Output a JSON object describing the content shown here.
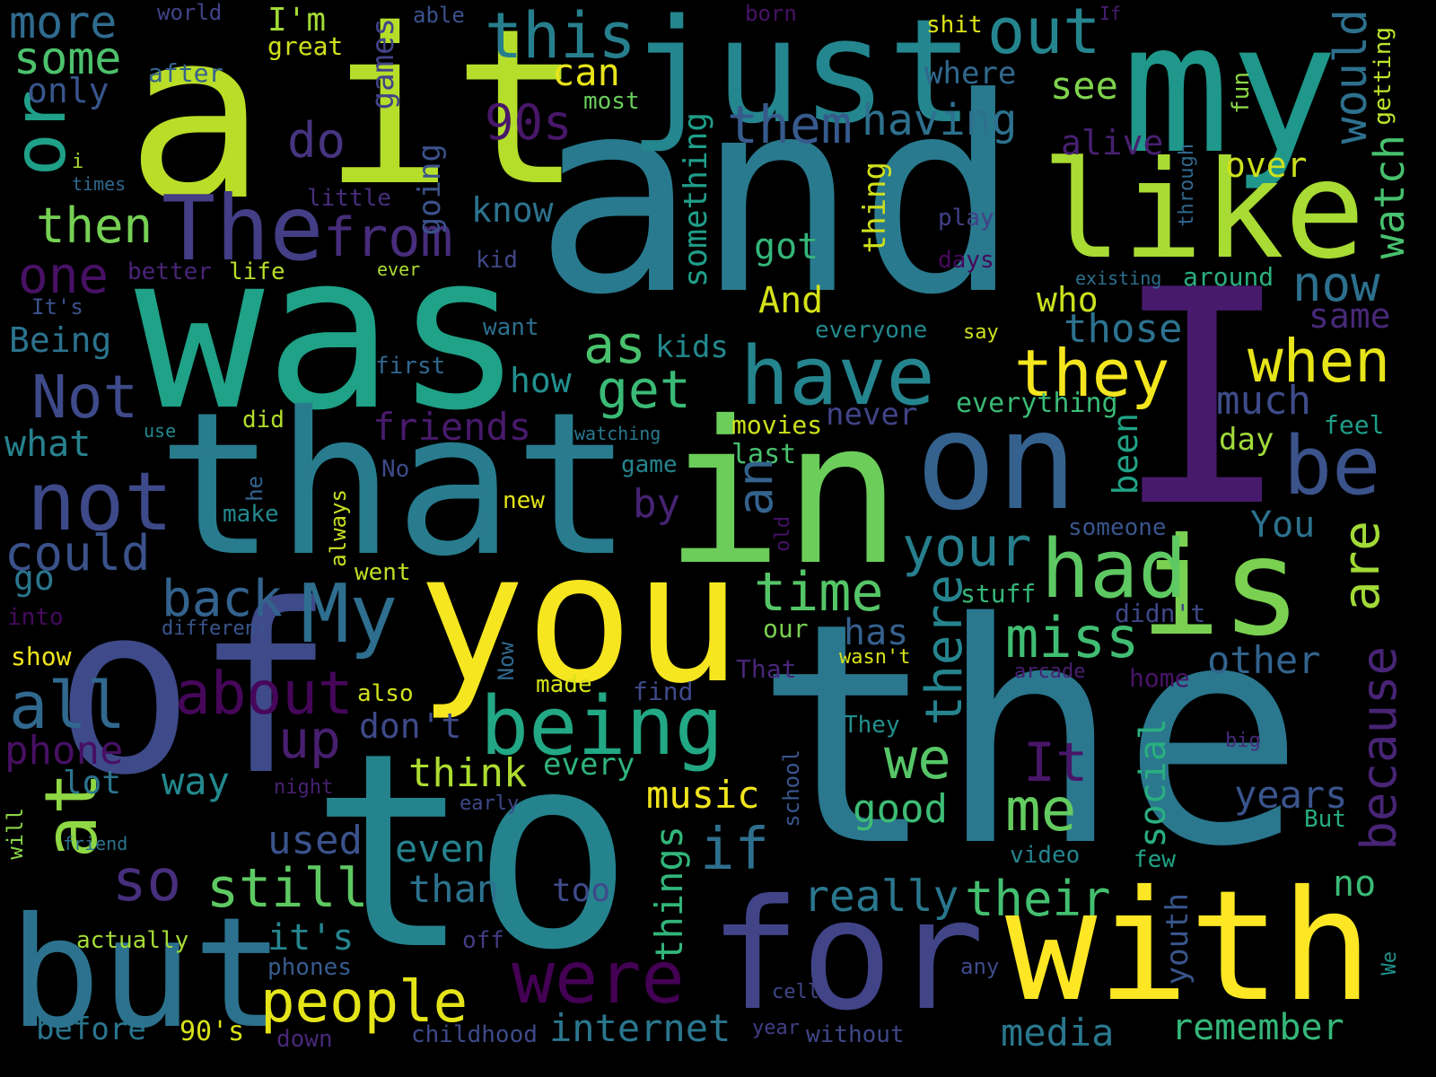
{
  "palette": {
    "background": "#000000",
    "colors": [
      "#440154",
      "#3b528b",
      "#21918c",
      "#5ec962",
      "#fde725"
    ]
  },
  "words": [
    "a",
    "it",
    "and",
    "my",
    "just",
    "like",
    "was",
    "I",
    "that",
    "in",
    "on",
    "the",
    "you",
    "to",
    "of",
    "with",
    "for",
    "but",
    "is",
    "The",
    "out",
    "this",
    "have",
    "had",
    "being",
    "be",
    "not",
    "or",
    "at",
    "My",
    "people",
    "were",
    "they",
    "when",
    "all",
    "about",
    "time",
    "your",
    "miss",
    "me",
    "we",
    "because",
    "there",
    "are",
    "them",
    "having",
    "as",
    "get",
    "from",
    "back",
    "one",
    "then",
    "do",
    "90s",
    "can",
    "see",
    "would",
    "watch",
    "still",
    "so",
    "could",
    "Not",
    "up",
    "think",
    "music",
    "if",
    "really",
    "their",
    "internet",
    "remember",
    "media",
    "years",
    "other",
    "It",
    "good",
    "way",
    "lot",
    "phone",
    "used",
    "even",
    "than",
    "too",
    "things",
    "every",
    "don't",
    "social",
    "no",
    "youth",
    "it's",
    "phones",
    "before",
    "90's",
    "childhood",
    "down",
    "off",
    "actually",
    "friends",
    "how",
    "kids",
    "something",
    "thing",
    "got",
    "And",
    "who",
    "those",
    "much",
    "day",
    "now",
    "same",
    "over",
    "alive",
    "going",
    "games",
    "know",
    "play",
    "days",
    "better",
    "life",
    "Being",
    "what",
    "It's",
    "want",
    "first",
    "say",
    "everyone",
    "existing",
    "around",
    "kid",
    "ever",
    "little",
    "some",
    "more",
    "only",
    "I'm",
    "great",
    "after",
    "world",
    "able",
    "most",
    "born",
    "shit",
    "If",
    "where",
    "fun",
    "getting",
    "through",
    "i",
    "times",
    "did",
    "use",
    "watching",
    "game",
    "last",
    "movies",
    "never",
    "everything",
    "feel",
    "No",
    "make",
    "he",
    "always",
    "new",
    "by",
    "an",
    "old",
    "been",
    "someone",
    "You",
    "go",
    "went",
    "into",
    "different",
    "show",
    "Now",
    "made",
    "also",
    "our",
    "stuff",
    "didn't",
    "That",
    "wasn't",
    "arcade",
    "home",
    "find",
    "They",
    "big",
    "night",
    "early",
    "school",
    "video",
    "But",
    "will",
    "friend",
    "few",
    "year",
    "cell",
    "any",
    "We",
    "without",
    "has"
  ]
}
